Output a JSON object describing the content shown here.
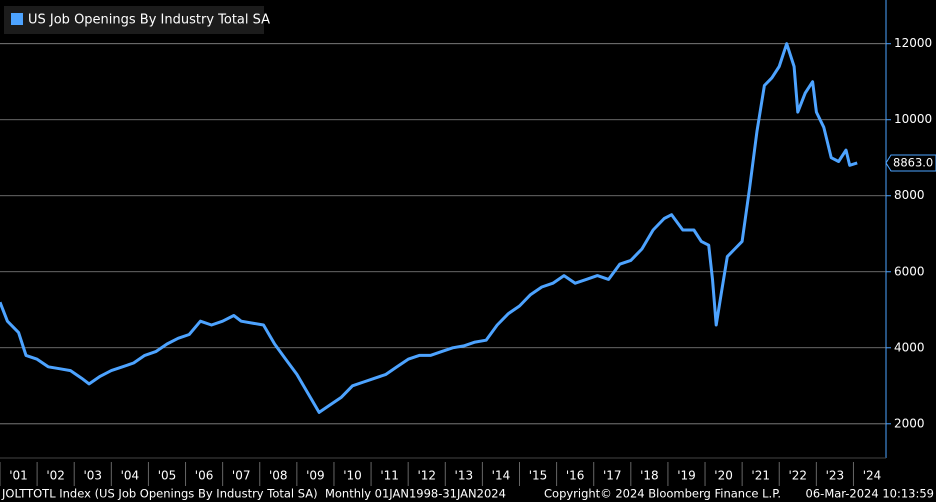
{
  "chart_data": {
    "type": "line",
    "series": [
      {
        "name": "US Job Openings By Industry Total SA",
        "color": "#4da3ff",
        "x": [
          2001.0,
          2001.2,
          2001.5,
          2001.7,
          2002.0,
          2002.3,
          2002.6,
          2002.9,
          2003.2,
          2003.4,
          2003.7,
          2004.0,
          2004.3,
          2004.6,
          2004.9,
          2005.2,
          2005.5,
          2005.8,
          2006.1,
          2006.4,
          2006.7,
          2007.0,
          2007.3,
          2007.5,
          2007.8,
          2008.1,
          2008.4,
          2008.7,
          2009.0,
          2009.3,
          2009.6,
          2009.9,
          2010.2,
          2010.5,
          2010.8,
          2011.1,
          2011.4,
          2011.7,
          2012.0,
          2012.3,
          2012.6,
          2012.9,
          2013.2,
          2013.5,
          2013.8,
          2014.1,
          2014.4,
          2014.7,
          2015.0,
          2015.3,
          2015.6,
          2015.9,
          2016.2,
          2016.5,
          2016.8,
          2017.1,
          2017.4,
          2017.7,
          2018.0,
          2018.3,
          2018.6,
          2018.9,
          2019.1,
          2019.4,
          2019.7,
          2019.9,
          2020.1,
          2020.2,
          2020.3,
          2020.45,
          2020.6,
          2020.8,
          2021.0,
          2021.2,
          2021.4,
          2021.6,
          2021.8,
          2022.0,
          2022.2,
          2022.4,
          2022.5,
          2022.7,
          2022.9,
          2023.0,
          2023.2,
          2023.4,
          2023.6,
          2023.8,
          2023.9,
          2024.1
        ],
        "values": [
          5200,
          4700,
          4400,
          3800,
          3700,
          3500,
          3450,
          3400,
          3200,
          3050,
          3250,
          3400,
          3500,
          3600,
          3800,
          3900,
          4100,
          4250,
          4350,
          4700,
          4600,
          4700,
          4850,
          4700,
          4650,
          4600,
          4100,
          3700,
          3300,
          2800,
          2300,
          2500,
          2700,
          3000,
          3100,
          3200,
          3300,
          3500,
          3700,
          3800,
          3800,
          3900,
          4000,
          4050,
          4150,
          4200,
          4600,
          4900,
          5100,
          5400,
          5600,
          5700,
          5900,
          5700,
          5800,
          5900,
          5800,
          6200,
          6300,
          6600,
          7100,
          7400,
          7500,
          7100,
          7100,
          6800,
          6700,
          5800,
          4600,
          5500,
          6400,
          6600,
          6800,
          8200,
          9700,
          10900,
          11100,
          11400,
          12000,
          11400,
          10200,
          10700,
          11000,
          10200,
          9800,
          9000,
          8900,
          9200,
          8800,
          8863
        ]
      }
    ],
    "last_value": {
      "value": 8863,
      "label": "8863.0"
    },
    "xlim": [
      2001,
      2024.85
    ],
    "xticks": [
      {
        "value": 2001,
        "label": "'01"
      },
      {
        "value": 2002,
        "label": "'02"
      },
      {
        "value": 2003,
        "label": "'03"
      },
      {
        "value": 2004,
        "label": "'04"
      },
      {
        "value": 2005,
        "label": "'05"
      },
      {
        "value": 2006,
        "label": "'06"
      },
      {
        "value": 2007,
        "label": "'07"
      },
      {
        "value": 2008,
        "label": "'08"
      },
      {
        "value": 2009,
        "label": "'09"
      },
      {
        "value": 2010,
        "label": "'10"
      },
      {
        "value": 2011,
        "label": "'11"
      },
      {
        "value": 2012,
        "label": "'12"
      },
      {
        "value": 2013,
        "label": "'13"
      },
      {
        "value": 2014,
        "label": "'14"
      },
      {
        "value": 2015,
        "label": "'15"
      },
      {
        "value": 2016,
        "label": "'16"
      },
      {
        "value": 2017,
        "label": "'17"
      },
      {
        "value": 2018,
        "label": "'18"
      },
      {
        "value": 2019,
        "label": "'19"
      },
      {
        "value": 2020,
        "label": "'20"
      },
      {
        "value": 2021,
        "label": "'21"
      },
      {
        "value": 2022,
        "label": "'22"
      },
      {
        "value": 2023,
        "label": "'23"
      },
      {
        "value": 2024,
        "label": "'24"
      }
    ],
    "ylim": [
      1100,
      13150
    ],
    "yticks": [
      2000,
      4000,
      6000,
      8000,
      10000,
      12000
    ],
    "grid": true,
    "footer": {
      "source": "JOLTTOTL Index (US Job Openings By Industry Total SA)  Monthly 01JAN1998-31JAN2024",
      "copyright": "Copyright© 2024 Bloomberg Finance L.P.",
      "timestamp": "06-Mar-2024 10:13:59"
    }
  }
}
